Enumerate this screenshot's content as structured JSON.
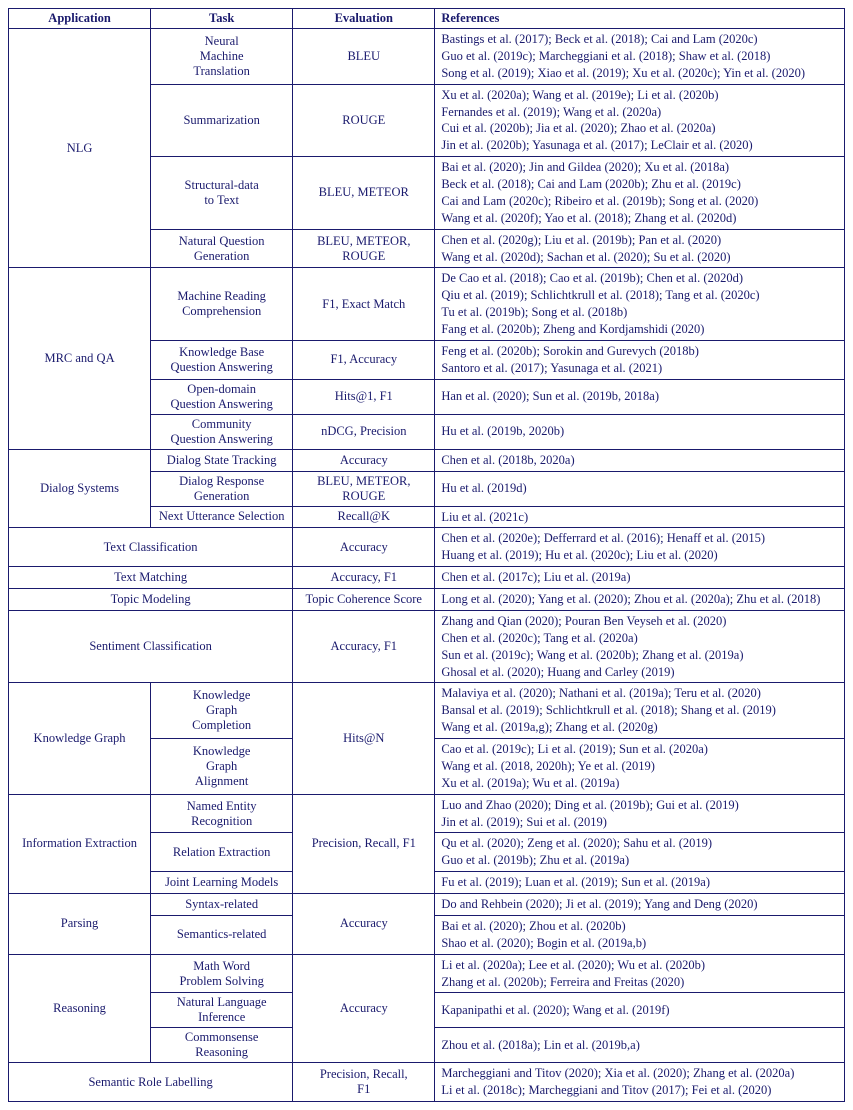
{
  "headers": [
    "Application",
    "Task",
    "Evaluation",
    "References"
  ],
  "colors": {
    "text": "#1a1a6d",
    "border": "#1a1a6d",
    "background": "#ffffff"
  },
  "typography": {
    "font_family": "Times New Roman",
    "font_size_pt": 9.5
  },
  "rows": [
    {
      "application": "NLG",
      "app_rowspan": 4,
      "task": "Neural\nMachine\nTranslation",
      "evaluation": "BLEU",
      "refs": [
        "Bastings et al. (2017); Beck et al. (2018); Cai and Lam (2020c)",
        "Guo et al. (2019c); Marcheggiani et al. (2018); Shaw et al. (2018)",
        "Song et al. (2019); Xiao et al. (2019); Xu et al. (2020c); Yin et al. (2020)"
      ]
    },
    {
      "task": "Summarization",
      "evaluation": "ROUGE",
      "refs": [
        "Xu et al. (2020a); Wang et al. (2019e); Li et al. (2020b)",
        "Fernandes et al. (2019); Wang et al. (2020a)",
        "Cui et al. (2020b); Jia et al. (2020); Zhao et al. (2020a)",
        "Jin et al. (2020b); Yasunaga et al. (2017); LeClair et al. (2020)"
      ]
    },
    {
      "task": "Structural-data\nto Text",
      "evaluation": "BLEU, METEOR",
      "refs": [
        "Bai et al. (2020); Jin and Gildea (2020); Xu et al. (2018a)",
        "Beck et al. (2018); Cai and Lam (2020b); Zhu et al. (2019c)",
        "Cai and Lam (2020c); Ribeiro et al. (2019b); Song et al. (2020)",
        "Wang et al. (2020f); Yao et al. (2018); Zhang et al. (2020d)"
      ]
    },
    {
      "task": "Natural Question\nGeneration",
      "evaluation": "BLEU, METEOR,\nROUGE",
      "refs": [
        "Chen et al. (2020g); Liu et al. (2019b); Pan et al. (2020)",
        "Wang et al. (2020d); Sachan et al. (2020); Su et al. (2020)"
      ]
    },
    {
      "application": "MRC and QA",
      "app_rowspan": 4,
      "task": "Machine Reading\nComprehension",
      "evaluation": "F1, Exact Match",
      "refs": [
        "De Cao et al. (2018); Cao et al. (2019b); Chen et al. (2020d)",
        "Qiu et al. (2019); Schlichtkrull et al. (2018); Tang et al. (2020c)",
        "Tu et al. (2019b); Song et al. (2018b)",
        "Fang et al. (2020b); Zheng and Kordjamshidi (2020)"
      ]
    },
    {
      "task": "Knowledge Base\nQuestion Answering",
      "evaluation": "F1, Accuracy",
      "refs": [
        "Feng et al. (2020b); Sorokin and Gurevych (2018b)",
        "Santoro et al. (2017); Yasunaga et al. (2021)"
      ]
    },
    {
      "task": "Open-domain\nQuestion Answering",
      "evaluation": "Hits@1, F1",
      "refs": [
        "Han et al. (2020); Sun et al. (2019b, 2018a)"
      ]
    },
    {
      "task": "Community\nQuestion Answering",
      "evaluation": "nDCG, Precision",
      "refs": [
        "Hu et al. (2019b, 2020b)"
      ]
    },
    {
      "application": "Dialog Systems",
      "app_rowspan": 3,
      "task": "Dialog State Tracking",
      "evaluation": "Accuracy",
      "refs": [
        "Chen et al. (2018b, 2020a)"
      ]
    },
    {
      "task": "Dialog Response\nGeneration",
      "evaluation": "BLEU, METEOR,\nROUGE",
      "refs": [
        "Hu et al. (2019d)"
      ]
    },
    {
      "task": "Next Utterance Selection",
      "evaluation": "Recall@K",
      "refs": [
        "Liu et al. (2021c)"
      ]
    },
    {
      "application": "Text Classification",
      "app_colspan": 2,
      "evaluation": "Accuracy",
      "refs": [
        "Chen et al. (2020e); Defferrard et al. (2016); Henaff et al. (2015)",
        "Huang et al. (2019); Hu et al. (2020c); Liu et al. (2020)"
      ]
    },
    {
      "application": "Text Matching",
      "app_colspan": 2,
      "evaluation": "Accuracy, F1",
      "refs": [
        "Chen et al. (2017c); Liu et al. (2019a)"
      ]
    },
    {
      "application": "Topic Modeling",
      "app_colspan": 2,
      "evaluation": "Topic Coherence Score",
      "refs": [
        "Long et al. (2020); Yang et al. (2020); Zhou et al. (2020a); Zhu et al. (2018)"
      ]
    },
    {
      "application": "Sentiment Classification",
      "app_colspan": 2,
      "evaluation": "Accuracy, F1",
      "refs": [
        "Zhang and Qian (2020); Pouran Ben Veyseh et al. (2020)",
        "Chen et al. (2020c); Tang et al. (2020a)",
        "Sun et al. (2019c); Wang et al. (2020b); Zhang et al. (2019a)",
        "Ghosal et al. (2020); Huang and Carley (2019)"
      ]
    },
    {
      "application": "Knowledge Graph",
      "app_rowspan": 2,
      "task": "Knowledge\nGraph\nCompletion",
      "evaluation": "Hits@N",
      "eval_rowspan": 2,
      "refs": [
        "Malaviya et al. (2020); Nathani et al. (2019a); Teru et al. (2020)",
        "Bansal et al. (2019); Schlichtkrull et al. (2018); Shang et al. (2019)",
        "Wang et al. (2019a,g); Zhang et al. (2020g)"
      ]
    },
    {
      "task": "Knowledge\nGraph\nAlignment",
      "refs": [
        "Cao et al. (2019c); Li et al. (2019); Sun et al. (2020a)",
        "Wang et al. (2018, 2020h); Ye et al. (2019)",
        "Xu et al. (2019a); Wu et al. (2019a)"
      ]
    },
    {
      "application": "Information Extraction",
      "app_rowspan": 3,
      "task": "Named Entity\nRecognition",
      "evaluation": "Precision, Recall, F1",
      "eval_rowspan": 3,
      "refs": [
        "Luo and Zhao (2020); Ding et al. (2019b); Gui et al. (2019)",
        "Jin et al. (2019); Sui et al. (2019)"
      ]
    },
    {
      "task": "Relation Extraction",
      "refs": [
        "Qu et al. (2020); Zeng et al. (2020); Sahu et al. (2019)",
        "Guo et al. (2019b); Zhu et al. (2019a)"
      ]
    },
    {
      "task": "Joint Learning Models",
      "refs": [
        "Fu et al. (2019); Luan et al. (2019); Sun et al. (2019a)"
      ]
    },
    {
      "application": "Parsing",
      "app_rowspan": 2,
      "task": "Syntax-related",
      "evaluation": "Accuracy",
      "eval_rowspan": 2,
      "refs": [
        "Do and Rehbein (2020); Ji et al. (2019); Yang and Deng (2020)"
      ]
    },
    {
      "task": "Semantics-related",
      "refs": [
        "Bai et al. (2020); Zhou et al. (2020b)",
        "Shao et al. (2020); Bogin et al. (2019a,b)"
      ]
    },
    {
      "application": "Reasoning",
      "app_rowspan": 3,
      "task": "Math Word\nProblem Solving",
      "evaluation": "Accuracy",
      "eval_rowspan": 3,
      "refs": [
        "Li et al. (2020a); Lee et al. (2020); Wu et al. (2020b)",
        "Zhang et al. (2020b); Ferreira and Freitas (2020)"
      ]
    },
    {
      "task": "Natural Language\nInference",
      "refs": [
        "Kapanipathi et al. (2020); Wang et al. (2019f)"
      ]
    },
    {
      "task": "Commonsense\nReasoning",
      "refs": [
        "Zhou et al. (2018a); Lin et al. (2019b,a)"
      ]
    },
    {
      "application": "Semantic Role Labelling",
      "app_colspan": 2,
      "evaluation": "Precision, Recall,\nF1",
      "refs": [
        "Marcheggiani and Titov (2020); Xia et al. (2020); Zhang et al. (2020a)",
        "Li et al. (2018c); Marcheggiani and Titov (2017); Fei et al. (2020)"
      ]
    }
  ]
}
